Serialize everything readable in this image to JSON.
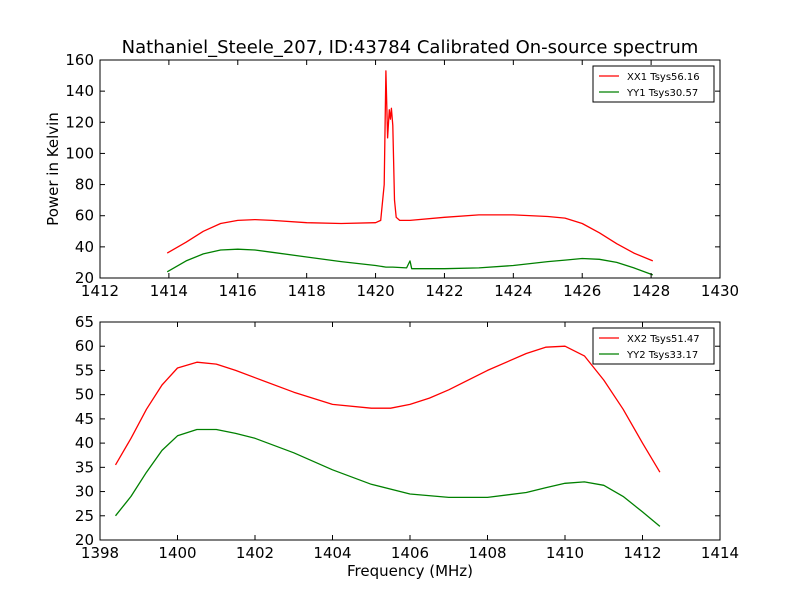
{
  "title": "Nathaniel_Steele_207, ID:43784 Calibrated On-source spectrum",
  "chart_data": [
    {
      "type": "line",
      "title": "Nathaniel_Steele_207, ID:43784 Calibrated On-source spectrum",
      "xlabel": "",
      "ylabel": "Power in Kelvin",
      "xlim": [
        1412,
        1430
      ],
      "ylim": [
        20,
        160
      ],
      "xticks": [
        "1412",
        "1414",
        "1416",
        "1418",
        "1420",
        "1422",
        "1424",
        "1426",
        "1428",
        "1430"
      ],
      "yticks": [
        "20",
        "40",
        "60",
        "80",
        "100",
        "120",
        "140",
        "160"
      ],
      "legend": "top-right",
      "grid": false,
      "series": [
        {
          "name": "XX1 Tsys56.16",
          "color": "#ff0000",
          "x": [
            1413.95,
            1414.5,
            1415.0,
            1415.5,
            1416.0,
            1416.5,
            1417.0,
            1418.0,
            1419.0,
            1420.0,
            1420.15,
            1420.25,
            1420.3,
            1420.35,
            1420.4,
            1420.43,
            1420.46,
            1420.5,
            1420.55,
            1420.6,
            1420.7,
            1421.0,
            1422.0,
            1423.0,
            1424.0,
            1425.0,
            1425.5,
            1426.0,
            1426.5,
            1427.0,
            1427.5,
            1428.05
          ],
          "y": [
            36,
            43,
            50,
            55,
            57,
            57.5,
            57,
            55.5,
            55,
            55.5,
            57,
            80,
            153,
            110,
            128,
            122,
            129,
            118,
            70,
            59,
            57,
            57,
            59,
            60.5,
            60.5,
            59.5,
            58.5,
            55,
            49,
            42,
            36,
            31
          ]
        },
        {
          "name": "YY1 Tsys30.57",
          "color": "#008000",
          "x": [
            1413.95,
            1414.5,
            1415.0,
            1415.5,
            1416.0,
            1416.5,
            1417.0,
            1418.0,
            1419.0,
            1420.0,
            1420.3,
            1420.5,
            1420.9,
            1421.0,
            1421.05,
            1421.1,
            1422.0,
            1423.0,
            1424.0,
            1425.0,
            1425.5,
            1426.0,
            1426.5,
            1427.0,
            1427.5,
            1428.05
          ],
          "y": [
            24,
            31,
            35.5,
            38,
            38.5,
            38,
            36.5,
            33.5,
            30.5,
            28,
            27,
            27,
            26.5,
            31,
            26,
            26,
            26,
            26.5,
            28,
            30.5,
            31.5,
            32.5,
            32,
            30,
            26.5,
            22
          ]
        }
      ]
    },
    {
      "type": "line",
      "title": "",
      "xlabel": "Frequency (MHz)",
      "ylabel": "",
      "xlim": [
        1398,
        1414
      ],
      "ylim": [
        20,
        65
      ],
      "xticks": [
        "1398",
        "1400",
        "1402",
        "1404",
        "1406",
        "1408",
        "1410",
        "1412",
        "1414"
      ],
      "yticks": [
        "20",
        "25",
        "30",
        "35",
        "40",
        "45",
        "50",
        "55",
        "60",
        "65"
      ],
      "legend": "top-right",
      "grid": false,
      "series": [
        {
          "name": "XX2 Tsys51.47",
          "color": "#ff0000",
          "x": [
            1398.4,
            1398.8,
            1399.2,
            1399.6,
            1400.0,
            1400.5,
            1401.0,
            1401.5,
            1402.0,
            1403.0,
            1404.0,
            1405.0,
            1405.5,
            1406.0,
            1406.5,
            1407.0,
            1408.0,
            1409.0,
            1409.5,
            1410.0,
            1410.5,
            1411.0,
            1411.5,
            1412.0,
            1412.45
          ],
          "y": [
            35.5,
            41,
            47,
            52,
            55.5,
            56.7,
            56.3,
            55,
            53.5,
            50.5,
            48,
            47.2,
            47.2,
            48,
            49.3,
            51,
            55,
            58.5,
            59.8,
            60,
            58,
            53,
            47,
            40,
            34
          ]
        },
        {
          "name": "YY2 Tsys33.17",
          "color": "#008000",
          "x": [
            1398.4,
            1398.8,
            1399.2,
            1399.6,
            1400.0,
            1400.5,
            1401.0,
            1401.5,
            1402.0,
            1403.0,
            1404.0,
            1405.0,
            1406.0,
            1407.0,
            1408.0,
            1409.0,
            1409.5,
            1410.0,
            1410.5,
            1411.0,
            1411.5,
            1412.0,
            1412.45
          ],
          "y": [
            25,
            29,
            34,
            38.5,
            41.5,
            42.8,
            42.8,
            42,
            41,
            38,
            34.5,
            31.5,
            29.5,
            28.8,
            28.8,
            29.8,
            30.8,
            31.7,
            32,
            31.3,
            29,
            25.8,
            22.8
          ]
        }
      ]
    }
  ]
}
